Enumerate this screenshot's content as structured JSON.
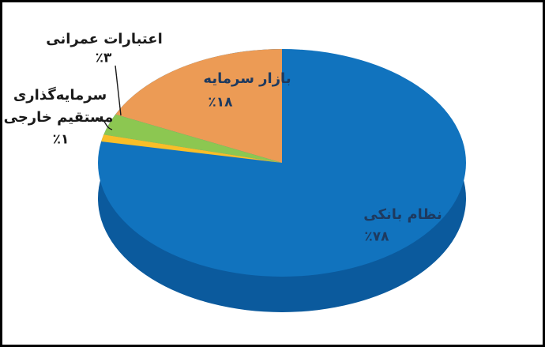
{
  "frame": {
    "background_color": "#ffffff",
    "border_color": "#000000"
  },
  "chart_data": {
    "type": "pie",
    "style": "3d",
    "title": "",
    "legend": "none",
    "start_angle_deg": 90,
    "direction": "counterclockwise",
    "slices": [
      {
        "id": "capital-market",
        "label": "بازار سرمایه",
        "value": 18,
        "percent_display": "٪۱۸",
        "color": "#ec9b55"
      },
      {
        "id": "development-credits",
        "label": "اعتبارات عمرانی",
        "value": 3,
        "percent_display": "٪۳",
        "color": "#8cc751"
      },
      {
        "id": "foreign-direct-investment",
        "label": "سرمایه‌گذاری مستقیم خارجی",
        "value": 1,
        "percent_display": "٪۱",
        "color": "#f9be28"
      },
      {
        "id": "banking-system",
        "label": "نظام بانکی",
        "value": 78,
        "percent_display": "٪۷۸",
        "color": "#1173be"
      }
    ],
    "side_color": "#0b5a9d",
    "label_color_inside": "#1e3a5f",
    "label_color_outside": "#1a1a1a"
  },
  "labels": {
    "capital": {
      "title": "بازار سرمایه",
      "percent": "٪۱۸"
    },
    "development": {
      "title": "اعتبارات عمرانی",
      "percent": "٪۳"
    },
    "fdi": {
      "title_line1": "سرمایه‌گذاری",
      "title_line2": "مستقیم خارجی",
      "percent": "٪۱"
    },
    "banking": {
      "title": "نظام بانکی",
      "percent": "٪۷۸"
    }
  }
}
